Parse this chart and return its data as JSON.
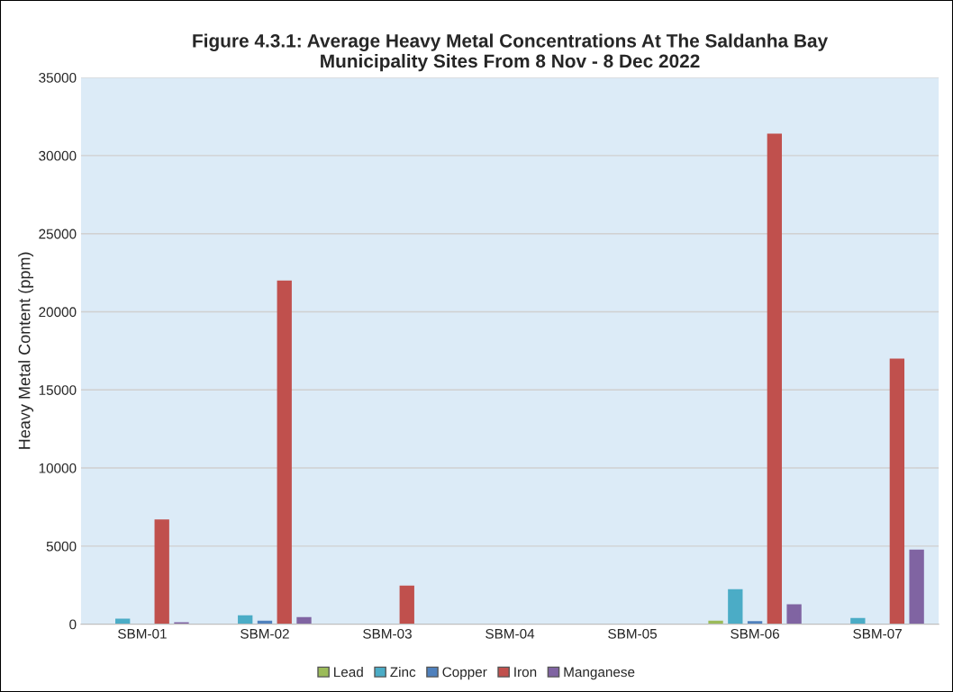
{
  "chart_data": {
    "type": "bar",
    "title": "Figure 4.3.1: Average Heavy Metal Concentrations At The Saldanha Bay\nMunicipality Sites From 8 Nov - 8 Dec 2022",
    "ylabel": "Heavy Metal Content (ppm)",
    "categories": [
      "SBM-01",
      "SBM-02",
      "SBM-03",
      "SBM-04",
      "SBM-05",
      "SBM-06",
      "SBM-07"
    ],
    "series": [
      {
        "name": "Lead",
        "color": "#9bbb59",
        "values": [
          0,
          null,
          0,
          0,
          0,
          230,
          null
        ]
      },
      {
        "name": "Zinc",
        "color": "#4bacc6",
        "values": [
          350,
          570,
          0,
          0,
          0,
          2240,
          400
        ]
      },
      {
        "name": "Copper",
        "color": "#4f81bd",
        "values": [
          0,
          230,
          0,
          0,
          0,
          190,
          null
        ]
      },
      {
        "name": "Iron",
        "color": "#c0504d",
        "values": [
          6700,
          22000,
          2470,
          0,
          0,
          31400,
          17000
        ]
      },
      {
        "name": "Manganese",
        "color": "#8064a2",
        "values": [
          130,
          460,
          0,
          0,
          0,
          1280,
          4770
        ]
      }
    ],
    "ylim": [
      0,
      35000
    ],
    "yticks": [
      0,
      5000,
      10000,
      15000,
      20000,
      25000,
      30000,
      35000
    ],
    "grid": "y",
    "legend": "bottom"
  }
}
